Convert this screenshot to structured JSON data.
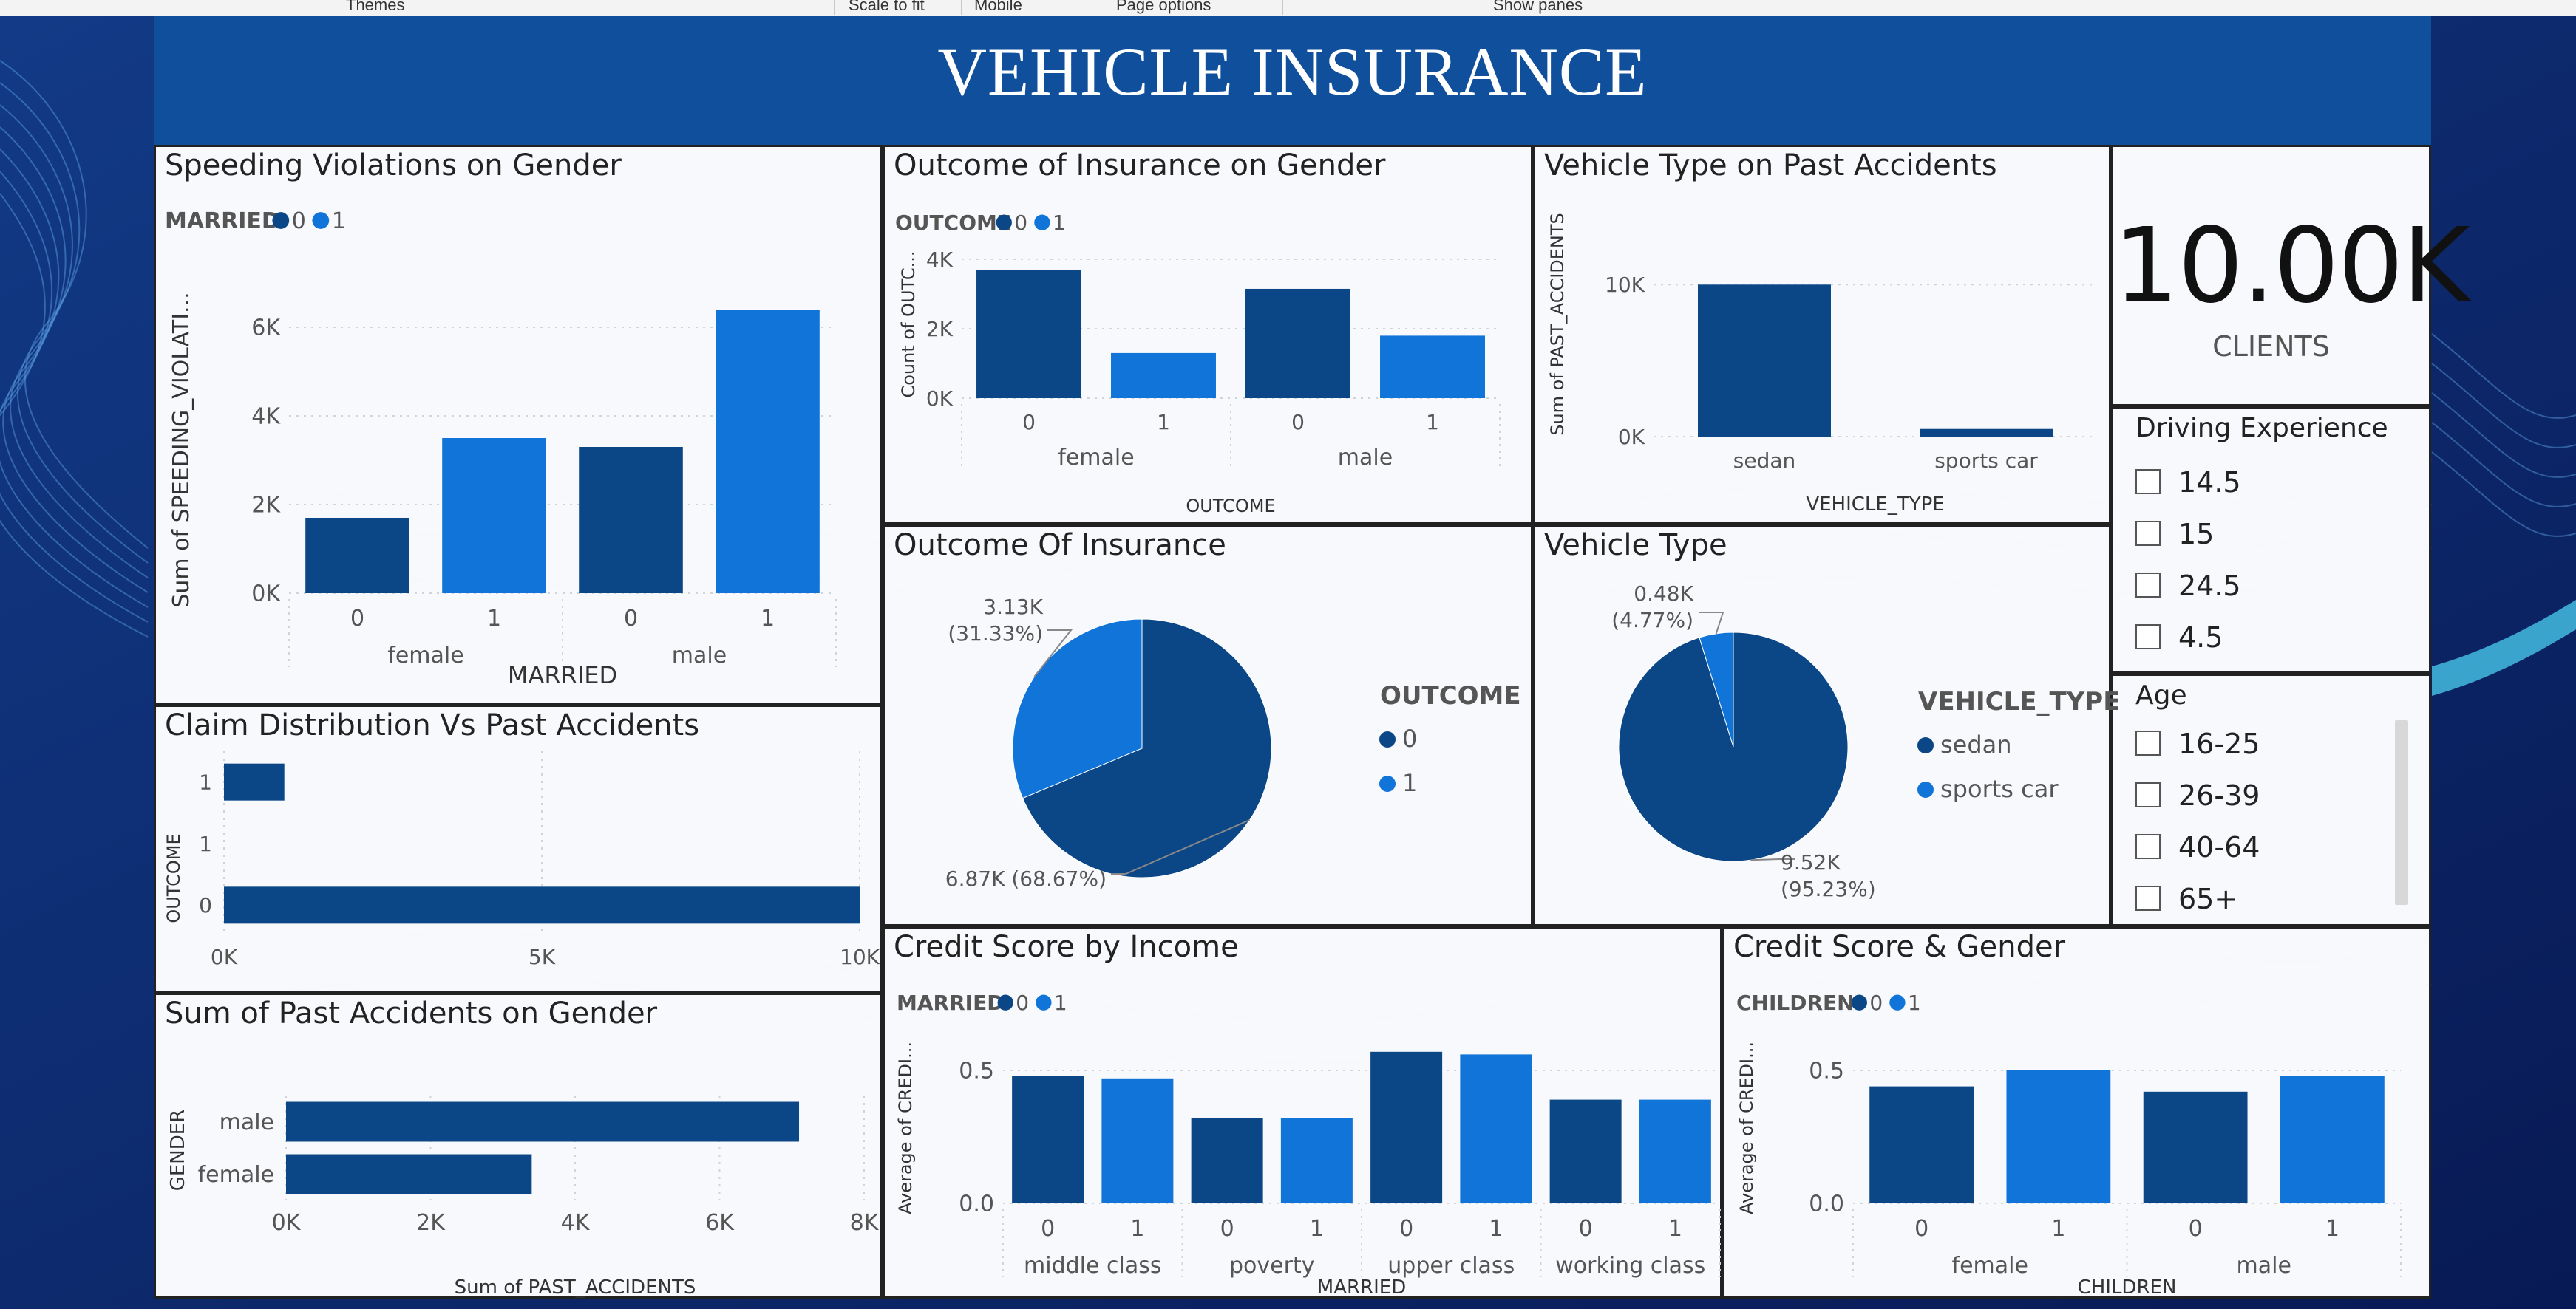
{
  "ribbon": {
    "labels": [
      "Themes",
      "Scale to fit",
      "Mobile",
      "Page options",
      "Show panes"
    ]
  },
  "dashboard": {
    "title": "VEHICLE INSURANCE"
  },
  "colors": {
    "dark": "#0b4686",
    "light": "#1174d8",
    "banner": "#0f4f9c",
    "background": "#0d2060"
  },
  "kpi": {
    "value": "10.00K",
    "label": "CLIENTS"
  },
  "slicers": {
    "driving_experience": {
      "title": "Driving Experience",
      "items": [
        "14.5",
        "15",
        "24.5",
        "4.5"
      ]
    },
    "age": {
      "title": "Age",
      "items": [
        "16-25",
        "26-39",
        "40-64",
        "65+"
      ]
    }
  },
  "chart_data": [
    {
      "id": "speeding",
      "type": "bar",
      "title": "Speeding Violations on Gender",
      "legend": {
        "title": "MARRIED",
        "items": [
          "0",
          "1"
        ],
        "placement": "top-left"
      },
      "ylabel": "Sum of SPEEDING_VIOLATI...",
      "xlabel": "MARRIED",
      "ylim": [
        0,
        6500
      ],
      "yticks": [
        0,
        2000,
        4000,
        6000
      ],
      "ytick_labels": [
        "0K",
        "2K",
        "4K",
        "6K"
      ],
      "groups": [
        "female",
        "male"
      ],
      "categories": [
        "0",
        "1",
        "0",
        "1"
      ],
      "values": [
        1700,
        3500,
        3300,
        6400
      ],
      "series_index": [
        0,
        1,
        0,
        1
      ]
    },
    {
      "id": "outcome_gender",
      "type": "bar",
      "title": "Outcome of Insurance on Gender",
      "legend": {
        "title": "OUTCOME",
        "items": [
          "0",
          "1"
        ],
        "placement": "top-left"
      },
      "ylabel": "Count of OUTC...",
      "xlabel": "OUTCOME",
      "ylim": [
        0,
        4000
      ],
      "yticks": [
        0,
        2000,
        4000
      ],
      "ytick_labels": [
        "0K",
        "2K",
        "4K"
      ],
      "groups": [
        "female",
        "male"
      ],
      "categories": [
        "0",
        "1",
        "0",
        "1"
      ],
      "values": [
        3700,
        1300,
        3150,
        1800
      ],
      "series_index": [
        0,
        1,
        0,
        1
      ]
    },
    {
      "id": "vehicle_accidents",
      "type": "bar",
      "title": "Vehicle Type on Past Accidents",
      "ylabel": "Sum of PAST_ACCIDENTS",
      "xlabel": "VEHICLE_TYPE",
      "ylim": [
        0,
        10500
      ],
      "yticks": [
        0,
        10000
      ],
      "ytick_labels": [
        "0K",
        "10K"
      ],
      "categories": [
        "sedan",
        "sports car"
      ],
      "values": [
        10000,
        500
      ],
      "series_index": [
        0,
        0
      ]
    },
    {
      "id": "outcome_pie",
      "type": "pie",
      "title": "Outcome Of Insurance",
      "legend": {
        "title": "OUTCOME",
        "placement": "right"
      },
      "slices": [
        {
          "label": "0",
          "value": 6870,
          "pct": 68.67,
          "text1": "6.87K (68.67%)",
          "text2": ""
        },
        {
          "label": "1",
          "value": 3130,
          "pct": 31.33,
          "text1": "3.13K",
          "text2": "(31.33%)"
        }
      ]
    },
    {
      "id": "vehicle_pie",
      "type": "pie",
      "title": "Vehicle Type",
      "legend": {
        "title": "VEHICLE_TYPE",
        "placement": "right"
      },
      "slices": [
        {
          "label": "sedan",
          "value": 9520,
          "pct": 95.23,
          "text1": "9.52K",
          "text2": "(95.23%)"
        },
        {
          "label": "sports car",
          "value": 480,
          "pct": 4.77,
          "text1": "0.48K",
          "text2": "(4.77%)"
        }
      ]
    },
    {
      "id": "claims",
      "type": "bar",
      "orientation": "horizontal",
      "title": "Claim Distribution Vs Past Accidents",
      "ylabel": "OUTCOME",
      "xlim": [
        0,
        10000
      ],
      "xticks": [
        0,
        5000,
        10000
      ],
      "xtick_labels": [
        "0K",
        "5K",
        "10K"
      ],
      "categories": [
        "1",
        "1",
        "0"
      ],
      "values": [
        950,
        0,
        10000
      ]
    },
    {
      "id": "accidents_gender",
      "type": "bar",
      "orientation": "horizontal",
      "title": "Sum of Past Accidents on Gender",
      "ylabel": "GENDER",
      "xlabel": "Sum of PAST_ACCIDENTS",
      "xlim": [
        0,
        8000
      ],
      "xticks": [
        0,
        2000,
        4000,
        6000,
        8000
      ],
      "xtick_labels": [
        "0K",
        "2K",
        "4K",
        "6K",
        "8K"
      ],
      "categories": [
        "male",
        "female"
      ],
      "values": [
        7100,
        3400
      ]
    },
    {
      "id": "credit_income",
      "type": "bar",
      "title": "Credit Score by Income",
      "legend": {
        "title": "MARRIED",
        "items": [
          "0",
          "1"
        ],
        "placement": "top-left"
      },
      "ylabel": "Average of CREDI...",
      "xlabel": "MARRIED",
      "ylim": [
        0,
        0.6
      ],
      "yticks": [
        0,
        0.5
      ],
      "ytick_labels": [
        "0.0",
        "0.5"
      ],
      "groups": [
        "middle class",
        "poverty",
        "upper class",
        "working class"
      ],
      "categories": [
        "0",
        "1",
        "0",
        "1",
        "0",
        "1",
        "0",
        "1"
      ],
      "values": [
        0.48,
        0.47,
        0.32,
        0.32,
        0.57,
        0.56,
        0.39,
        0.39
      ],
      "series_index": [
        0,
        1,
        0,
        1,
        0,
        1,
        0,
        1
      ]
    },
    {
      "id": "credit_gender",
      "type": "bar",
      "title": "Credit Score & Gender",
      "legend": {
        "title": "CHILDREN",
        "items": [
          "0",
          "1"
        ],
        "placement": "top-left"
      },
      "ylabel": "Average of CREDI...",
      "xlabel": "CHILDREN",
      "ylim": [
        0,
        0.6
      ],
      "yticks": [
        0,
        0.5
      ],
      "ytick_labels": [
        "0.0",
        "0.5"
      ],
      "groups": [
        "female",
        "male"
      ],
      "categories": [
        "0",
        "1",
        "0",
        "1"
      ],
      "values": [
        0.44,
        0.5,
        0.42,
        0.48
      ],
      "series_index": [
        0,
        1,
        0,
        1
      ]
    }
  ]
}
